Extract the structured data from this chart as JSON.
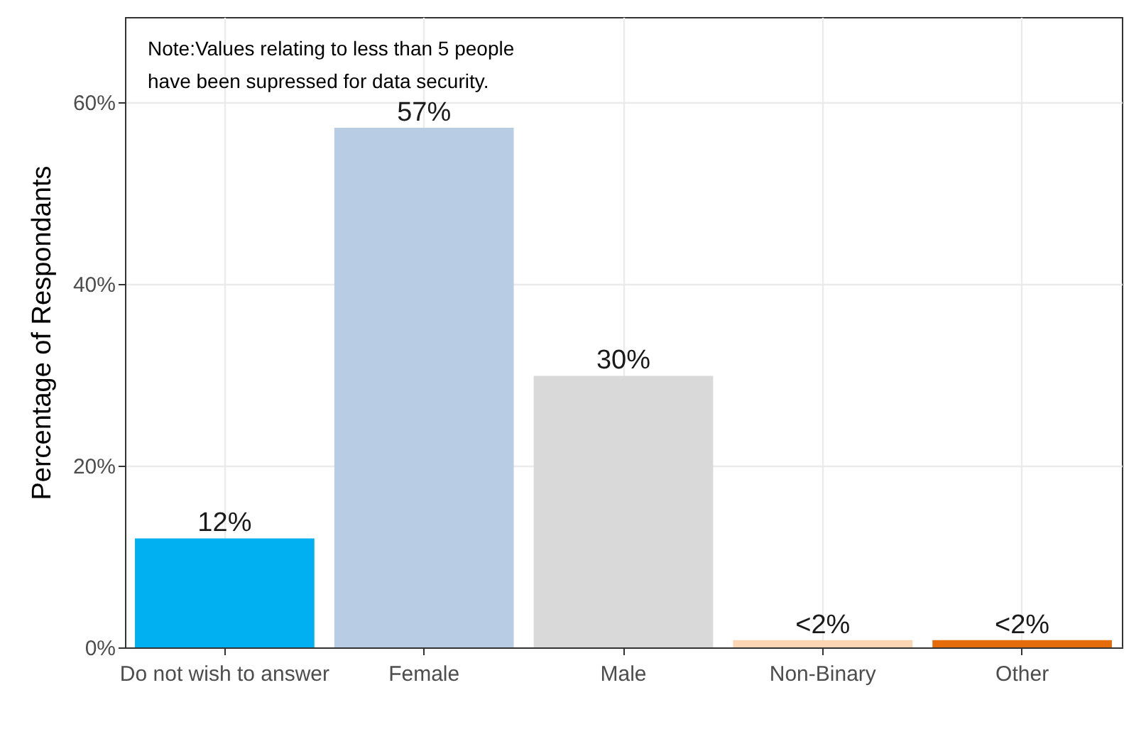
{
  "chart_data": {
    "type": "bar",
    "ylabel": "Percentage of Respondants",
    "categories": [
      "Do not wish\nto answer",
      "Female",
      "Male",
      "Non-Binary",
      "Other"
    ],
    "values": [
      12,
      57.2,
      29.9,
      0.8,
      0.8
    ],
    "colors": [
      "#00b0f0",
      "#b8cce4",
      "#d9d9d9",
      "#fcd5b4",
      "#e46c0a"
    ],
    "value_labels": [
      "12%",
      "57%",
      "30%",
      "<2%",
      "<2%"
    ],
    "ylim": [
      0,
      69.4
    ],
    "yticks": [
      {
        "value": 0,
        "label": "0%"
      },
      {
        "value": 20,
        "label": "20%"
      },
      {
        "value": 40,
        "label": "40%"
      },
      {
        "value": 60,
        "label": "60%"
      }
    ],
    "grid": true,
    "annotations": [
      "Note:Values relating to less than 5 people\nhave been supressed for data security."
    ]
  }
}
